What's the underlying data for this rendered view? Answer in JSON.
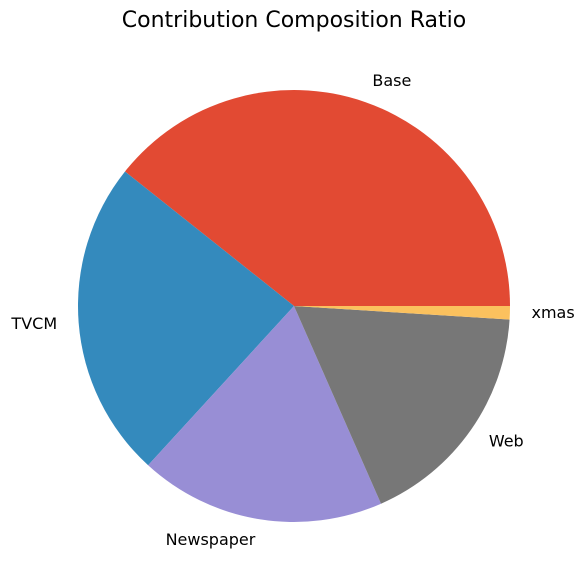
{
  "chart_data": {
    "type": "pie",
    "title": "Contribution Composition Ratio",
    "categories": [
      "Base",
      "TVCM",
      "Newspaper",
      "Web",
      "xmas"
    ],
    "values": [
      39.3,
      23.9,
      18.4,
      17.4,
      1.0
    ],
    "colors": [
      "#E24A33",
      "#348ABD",
      "#988ED5",
      "#777777",
      "#FBC15E"
    ]
  }
}
